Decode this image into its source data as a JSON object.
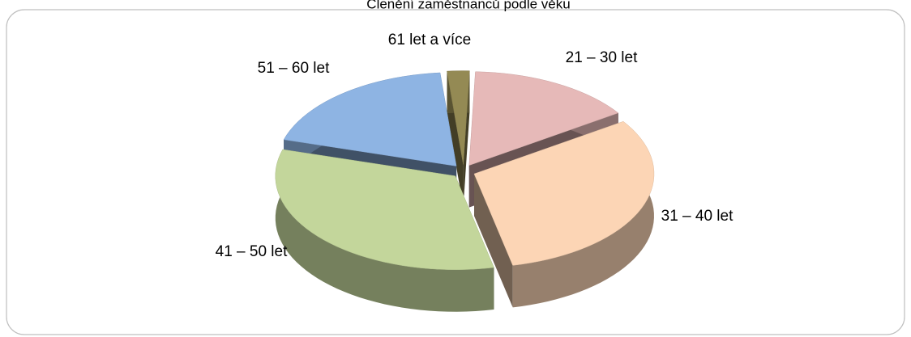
{
  "chart_data": {
    "type": "pie3d",
    "title": "Členění zaměstnanců podle věku",
    "categories": [
      "21 – 30 let",
      "31 – 40 let",
      "41 – 50 let",
      "51 – 60 let",
      "61 let a více"
    ],
    "values": [
      15,
      31,
      33,
      19,
      2
    ],
    "colors": [
      "#e6b9b8",
      "#fcd5b5",
      "#c3d69b",
      "#8eb4e3",
      "#948a54"
    ]
  }
}
